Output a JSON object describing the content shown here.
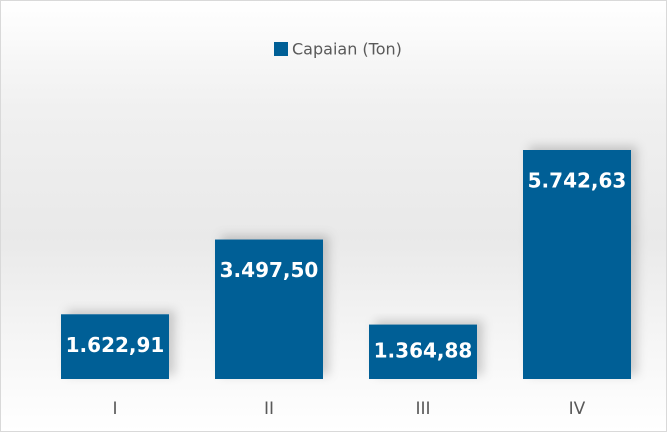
{
  "chart_data": {
    "type": "bar",
    "legend": "Capaian (Ton)",
    "categories": [
      "I",
      "II",
      "III",
      "IV"
    ],
    "series": [
      {
        "name": "Capaian (Ton)",
        "color": "#005f96",
        "values": [
          1622.91,
          3497.5,
          1364.88,
          5742.63
        ],
        "value_labels": [
          "1.622,91",
          "3.497,50",
          "1.364,88",
          "5.742,63"
        ]
      }
    ],
    "legend_position": "top"
  }
}
